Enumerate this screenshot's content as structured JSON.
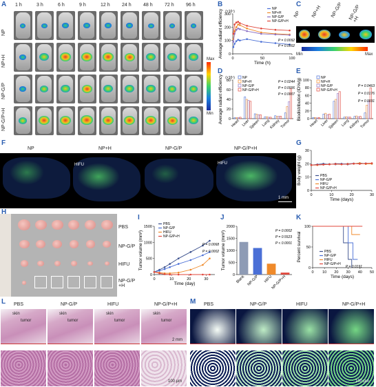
{
  "panels": {
    "A": "A",
    "B": "B",
    "C": "C",
    "D": "D",
    "E": "E",
    "F": "F",
    "G": "G",
    "H": "H",
    "I": "I",
    "J": "J",
    "K": "K",
    "L": "L",
    "M": "M"
  },
  "panel_a": {
    "timepoints": [
      "1 h",
      "3 h",
      "6 h",
      "9 h",
      "12 h",
      "24 h",
      "48 h",
      "72 h",
      "96 h"
    ],
    "rows": [
      "NP",
      "NP+H",
      "NP-G/P",
      "NP-G/P+H"
    ],
    "colorbar_max": "Max",
    "colorbar_min": "Min"
  },
  "panel_c": {
    "labels": [
      "NP",
      "NP+H",
      "NP-G/P",
      "NP-G/P +H"
    ],
    "min": "Min",
    "max": "Max"
  },
  "panel_f": {
    "labels": [
      "NP",
      "NP+H",
      "NP-G/P",
      "NP-G/P+H"
    ],
    "hifu1": "HIFU",
    "hifu2": "HIFU",
    "scale": "1 mm"
  },
  "panel_h": {
    "labels": [
      "PBS",
      "NP-G/P",
      "HIFU",
      "NP-G/P +H"
    ]
  },
  "panel_l": {
    "labels": [
      "PBS",
      "NP-G/P",
      "HIFU",
      "NP-G/P+H"
    ],
    "skin": "skin",
    "tumor": "tumor",
    "scale_top": "2 mm",
    "scale_bottom": "100 μm"
  },
  "panel_m": {
    "labels": [
      "PBS",
      "NP-G/P",
      "HIFU",
      "NP-G/P+H"
    ],
    "scale": "100 μm"
  },
  "chart_data": [
    {
      "id": "B",
      "type": "line",
      "xlabel": "Time (h)",
      "ylabel": "Average radiant efficiency",
      "ylabel_unit": "(×10⁷)",
      "xlim": [
        0,
        100
      ],
      "ylim": [
        0,
        300
      ],
      "xticks": [
        0,
        50,
        100
      ],
      "yticks": [
        0,
        100,
        200,
        300
      ],
      "x": [
        1,
        3,
        6,
        9,
        12,
        24,
        48,
        72,
        96
      ],
      "series": [
        {
          "name": "NP",
          "color": "#4a6fd6",
          "values": [
            50,
            75,
            95,
            105,
            100,
            110,
            90,
            80,
            70
          ]
        },
        {
          "name": "NP+H",
          "color": "#ef8a2a",
          "values": [
            110,
            170,
            200,
            220,
            215,
            190,
            160,
            150,
            145
          ]
        },
        {
          "name": "NP-G/P",
          "color": "#8b6fc4",
          "values": [
            90,
            150,
            180,
            190,
            185,
            170,
            150,
            145,
            140
          ]
        },
        {
          "name": "NP-G/P+H",
          "color": "#e0453a",
          "values": [
            150,
            220,
            235,
            240,
            230,
            210,
            190,
            180,
            175
          ]
        }
      ],
      "annotations": [
        "P = 0.0092",
        "P = 0.0002"
      ]
    },
    {
      "id": "D",
      "type": "bar",
      "ylabel": "Average radiant efficiency",
      "ylabel_unit": "(×10⁷)",
      "ylim": [
        0,
        80
      ],
      "yticks": [
        0,
        20,
        40,
        60,
        80
      ],
      "categories": [
        "Heart",
        "Liver",
        "Spleen",
        "Lung",
        "Kidney",
        "Tumor"
      ],
      "series": [
        {
          "name": "NP",
          "color": "#4a6fd6",
          "values": [
            2,
            45,
            10,
            4,
            6,
            12
          ]
        },
        {
          "name": "NP+H",
          "color": "#ef8a2a",
          "values": [
            2,
            40,
            9,
            4,
            5,
            25
          ]
        },
        {
          "name": "NP-G/P",
          "color": "#8b6fc4",
          "values": [
            2,
            38,
            8,
            3,
            5,
            35
          ]
        },
        {
          "name": "NP-G/P+H",
          "color": "#e0453a",
          "values": [
            3,
            36,
            8,
            3,
            5,
            62
          ]
        }
      ],
      "annotations": [
        "P = 0.0244",
        "P = 0.0006",
        "P = 0.0007"
      ]
    },
    {
      "id": "E",
      "type": "bar",
      "ylabel": "Biodistribution (ID%/g)",
      "ylim": [
        0,
        100
      ],
      "yticks": [
        0,
        20,
        40,
        60,
        80,
        100
      ],
      "categories": [
        "Heart",
        "Liver",
        "Spleen",
        "Lung",
        "Kidney",
        "Tumor"
      ],
      "series": [
        {
          "name": "NP",
          "color": "#4a6fd6",
          "values": [
            3,
            12,
            45,
            4,
            6,
            15
          ]
        },
        {
          "name": "NP+H",
          "color": "#ef8a2a",
          "values": [
            3,
            14,
            50,
            5,
            7,
            35
          ]
        },
        {
          "name": "NP-G/P",
          "color": "#8b6fc4",
          "values": [
            2,
            10,
            65,
            4,
            5,
            45
          ]
        },
        {
          "name": "NP-G/P+H",
          "color": "#e0453a",
          "values": [
            3,
            12,
            70,
            4,
            6,
            80
          ]
        }
      ],
      "annotations": [
        "P = 0.0463",
        "P = 0.0176",
        "P = 0.0031"
      ]
    },
    {
      "id": "G",
      "type": "line",
      "xlabel": "Time (days)",
      "ylabel": "Body weight (g)",
      "xlim": [
        0,
        30
      ],
      "ylim": [
        0,
        30
      ],
      "xticks": [
        0,
        10,
        20,
        30
      ],
      "yticks": [
        0,
        10,
        20,
        30
      ],
      "x": [
        0,
        3,
        6,
        9,
        12,
        15,
        18,
        21,
        24,
        27,
        30
      ],
      "series": [
        {
          "name": "PBS",
          "color": "#3a4f8c",
          "values": [
            19,
            19.5,
            20,
            19.5,
            20,
            20,
            19.5,
            20,
            20.5,
            20,
            20
          ]
        },
        {
          "name": "NP-G/P",
          "color": "#4a6fd6",
          "values": [
            19,
            19.3,
            19.6,
            19.8,
            19.5,
            19.9,
            20,
            20.2,
            20,
            20.3,
            20.1
          ]
        },
        {
          "name": "HIFU",
          "color": "#ef8a2a",
          "values": [
            19,
            19,
            19.4,
            19.6,
            19.7,
            19.5,
            19.9,
            20,
            20.4,
            19.8,
            20
          ]
        },
        {
          "name": "NP-G/P+H",
          "color": "#e0453a",
          "values": [
            19,
            19.2,
            19.3,
            19.5,
            19.8,
            19.6,
            19.7,
            20.1,
            19.9,
            20.2,
            20.4
          ]
        }
      ]
    },
    {
      "id": "I",
      "type": "line",
      "xlabel": "Time (day)",
      "ylabel": "Tumor volume (mm³)",
      "xlim": [
        0,
        35
      ],
      "ylim": [
        0,
        1500
      ],
      "xticks": [
        0,
        10,
        20,
        30
      ],
      "yticks": [
        0,
        500,
        1000,
        1500
      ],
      "x": [
        0,
        3,
        6,
        9,
        14,
        21,
        28,
        32
      ],
      "series": [
        {
          "name": "PBS",
          "color": "#3a4f8c",
          "values": [
            80,
            150,
            230,
            330,
            500,
            700,
            900,
            1050
          ]
        },
        {
          "name": "NP-G/P",
          "color": "#4a6fd6",
          "values": [
            80,
            120,
            170,
            230,
            330,
            450,
            600,
            700
          ]
        },
        {
          "name": "HIFU",
          "color": "#ef8a2a",
          "values": [
            80,
            60,
            40,
            40,
            60,
            150,
            300,
            500
          ]
        },
        {
          "name": "NP-G/P+H",
          "color": "#e0453a",
          "values": [
            80,
            40,
            10,
            0,
            0,
            0,
            0,
            0
          ]
        }
      ],
      "annotations": [
        "P = 0.0068",
        "P = 0.0002"
      ]
    },
    {
      "id": "J",
      "type": "bar",
      "ylabel": "Tumor volume (mm³)",
      "ylim": [
        0,
        2000
      ],
      "yticks": [
        0,
        500,
        1000,
        1500,
        2000
      ],
      "categories": [
        "Blank",
        "NP-G/P",
        "HIFU",
        "NP-G/P+H"
      ],
      "colors": [
        "#8e9bb5",
        "#4a6fd6",
        "#ef8a2a",
        "#e0453a"
      ],
      "values": [
        1350,
        1100,
        450,
        80
      ],
      "annotations": [
        "P = 0.0002",
        "P = 0.5523",
        "P < 0.0001"
      ]
    },
    {
      "id": "K",
      "type": "line",
      "xlabel": "Time (days)",
      "ylabel": "Percent survival",
      "xlim": [
        0,
        50
      ],
      "ylim": [
        0,
        100
      ],
      "xticks": [
        0,
        10,
        20,
        30,
        40,
        50
      ],
      "yticks": [
        0,
        50,
        100
      ],
      "series": [
        {
          "name": "PBS",
          "color": "#3a4f8c",
          "x": [
            0,
            26,
            26,
            30,
            30,
            33,
            33
          ],
          "values": [
            100,
            100,
            60,
            60,
            20,
            20,
            0
          ]
        },
        {
          "name": "NP-G/P",
          "color": "#4a6fd6",
          "x": [
            0,
            30,
            30,
            34,
            34,
            38
          ],
          "values": [
            100,
            100,
            60,
            60,
            20,
            20
          ]
        },
        {
          "name": "HIFU",
          "color": "#ef8a2a",
          "x": [
            0,
            33,
            33,
            40
          ],
          "values": [
            100,
            100,
            80,
            80
          ]
        },
        {
          "name": "NP-G/P+H",
          "color": "#e0453a",
          "x": [
            0,
            42
          ],
          "values": [
            100,
            100
          ]
        }
      ],
      "annotations": [
        "P = 0.0191"
      ]
    }
  ]
}
